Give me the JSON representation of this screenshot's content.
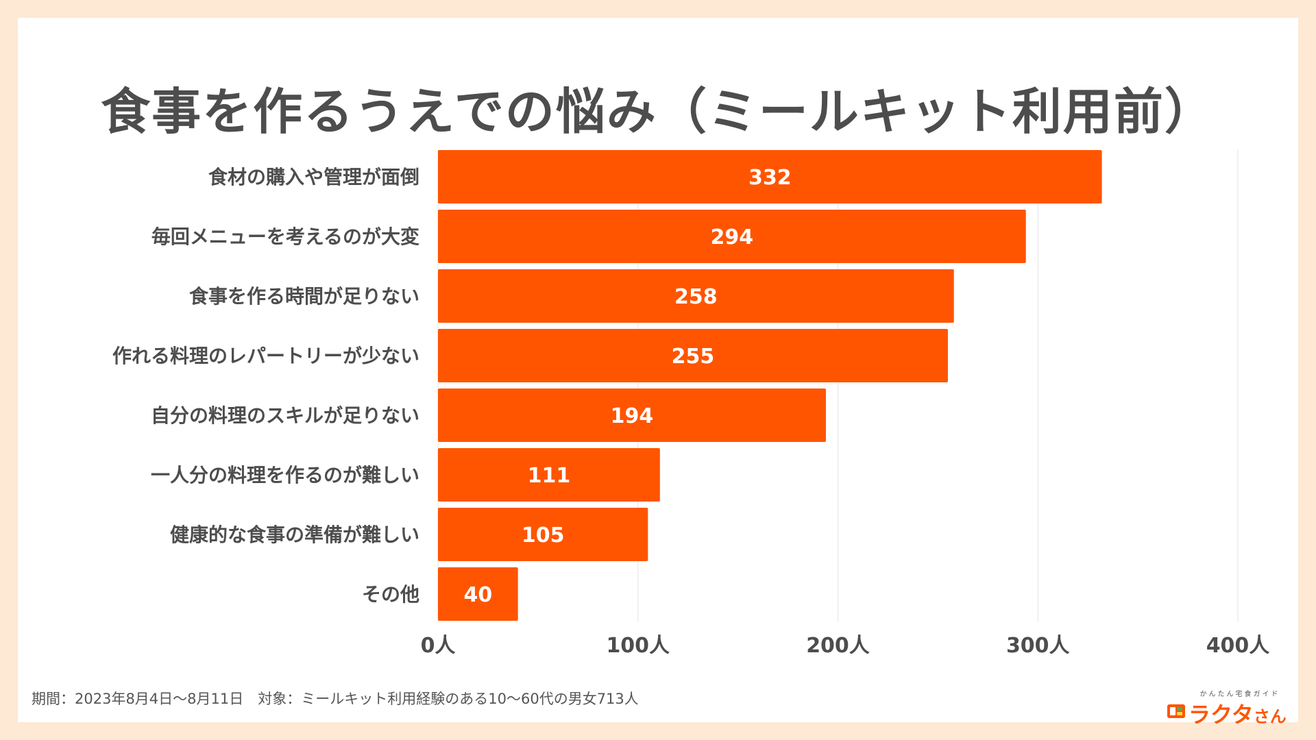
{
  "title": "食事を作るうえでの悩み（ミールキット利用前）",
  "footnote": "期間：2023年8月4日〜8月11日　対象：ミールキット利用経験のある10〜60代の男女713人",
  "logo": {
    "tagline": "かんたん宅食ガイド",
    "name": "ラクタ",
    "suffix": "さん",
    "icon": "bento-box-icon"
  },
  "colors": {
    "background": "#fde9d4",
    "bar": "#ff5500",
    "title": "#4d4d4d",
    "label": "#4d4d4d",
    "grid": "#e6e6e6"
  },
  "chart_data": {
    "type": "bar",
    "orientation": "horizontal",
    "title": "食事を作るうえでの悩み（ミールキット利用前）",
    "categories": [
      "食材の購入や管理が面倒",
      "毎回メニューを考えるのが大変",
      "食事を作る時間が足りない",
      "作れる料理のレパートリーが少ない",
      "自分の料理のスキルが足りない",
      "一人分の料理を作るのが難しい",
      "健康的な食事の準備が難しい",
      "その他"
    ],
    "values": [
      332,
      294,
      258,
      255,
      194,
      111,
      105,
      40
    ],
    "value_labels": [
      "332",
      "294",
      "258",
      "255",
      "194",
      "111",
      "105",
      "40"
    ],
    "xlim": [
      0,
      400
    ],
    "ticks": [
      0,
      100,
      200,
      300,
      400
    ],
    "tick_labels": [
      "0人",
      "100人",
      "200人",
      "300人",
      "400人"
    ],
    "xlabel": "",
    "ylabel": "",
    "grid": true
  }
}
